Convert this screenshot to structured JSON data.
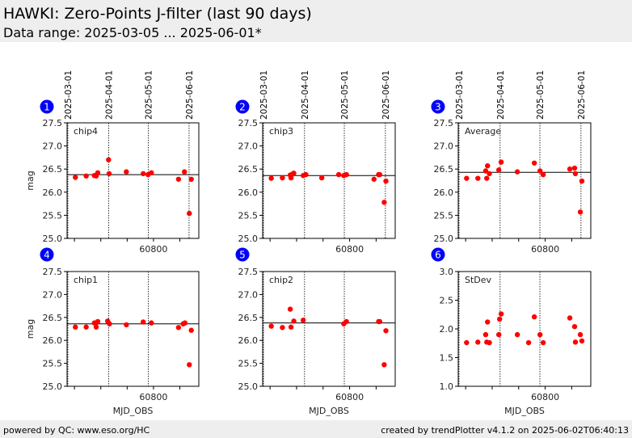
{
  "header": {
    "title": "HAWKI: Zero-Points J-filter (last 90 days)",
    "subtitle": "Data range: 2025-03-05 ... 2025-06-01*"
  },
  "footer": {
    "left": "powered by QC: www.eso.org/HC",
    "right": "created by trendPlotter v4.1.2 on 2025-06-02T06:40:13"
  },
  "colors": {
    "points": "#ff0000",
    "badge": "#0000ff",
    "badge_text": "#ffffcc",
    "mean_line": "#000000"
  },
  "chart_data": [
    {
      "type": "scatter",
      "panel": "1",
      "label": "chip4",
      "ylabel": "mag",
      "xlabel": "",
      "ylim": [
        25.0,
        27.5
      ],
      "yticks": [
        25.0,
        25.5,
        26.0,
        26.5,
        27.0,
        27.5
      ],
      "xlim": [
        60734.4,
        60834.4
      ],
      "xticks": [
        60800
      ],
      "date_lines": {
        "mjd": [
          60735,
          60766,
          60796,
          60827
        ],
        "labels": [
          "2025-03-01",
          "2025-04-01",
          "2025-05-01",
          "2025-06-01"
        ]
      },
      "mean": 26.38,
      "x": [
        60740.7,
        60748.9,
        60755.1,
        60756.5,
        60757.7,
        60765.9,
        60766.3,
        60779.4,
        60792.2,
        60795.9,
        60798.4,
        60819.0,
        60823.5,
        60827.2,
        60828.7
      ],
      "y": [
        26.32,
        26.35,
        26.36,
        26.35,
        26.42,
        26.7,
        26.4,
        26.44,
        26.4,
        26.38,
        26.42,
        26.28,
        26.44,
        25.54,
        26.28
      ]
    },
    {
      "type": "scatter",
      "panel": "2",
      "label": "chip3",
      "ylabel": "",
      "xlabel": "",
      "ylim": [
        25.0,
        27.5
      ],
      "yticks": [
        25.0,
        25.5,
        26.0,
        26.5,
        27.0,
        27.5
      ],
      "xlim": [
        60734.4,
        60834.4
      ],
      "xticks": [
        60800
      ],
      "date_lines": {
        "mjd": [
          60735,
          60766,
          60796,
          60827
        ],
        "labels": [
          "2025-03-01",
          "2025-04-01",
          "2025-05-01",
          "2025-06-01"
        ]
      },
      "mean": 26.36,
      "x": [
        60740.9,
        60749.3,
        60755.2,
        60755.8,
        60756.9,
        60757.9,
        60765.0,
        60767.0,
        60779.0,
        60791.8,
        60795.6,
        60797.6,
        60818.4,
        60821.9,
        60822.7,
        60826.1,
        60827.4
      ],
      "y": [
        26.3,
        26.31,
        26.37,
        26.31,
        26.39,
        26.41,
        26.36,
        26.38,
        26.31,
        26.38,
        26.36,
        26.38,
        26.28,
        26.38,
        26.38,
        25.78,
        26.24
      ]
    },
    {
      "type": "scatter",
      "panel": "3",
      "label": "Average",
      "ylabel": "",
      "xlabel": "",
      "ylim": [
        25.0,
        27.5
      ],
      "yticks": [
        25.0,
        25.5,
        26.0,
        26.5,
        27.0,
        27.5
      ],
      "xlim": [
        60734.4,
        60834.4
      ],
      "xticks": [
        60800
      ],
      "date_lines": {
        "mjd": [
          60735,
          60766,
          60796,
          60827
        ],
        "labels": [
          "2025-03-01",
          "2025-04-01",
          "2025-05-01",
          "2025-06-01"
        ]
      },
      "mean": 26.43,
      "x": [
        60740.7,
        60749.2,
        60755.1,
        60755.9,
        60756.5,
        60757.9,
        60765.0,
        60766.8,
        60779.0,
        60791.8,
        60796.1,
        60798.5,
        60818.6,
        60822.2,
        60822.8,
        60826.5,
        60827.7
      ],
      "y": [
        26.3,
        26.3,
        26.46,
        26.3,
        26.57,
        26.4,
        26.48,
        26.65,
        26.44,
        26.63,
        26.46,
        26.38,
        26.5,
        26.52,
        26.4,
        25.57,
        26.24
      ]
    },
    {
      "type": "scatter",
      "panel": "4",
      "label": "chip1",
      "ylabel": "mag",
      "xlabel": "MJD_OBS",
      "ylim": [
        25.0,
        27.5
      ],
      "yticks": [
        25.0,
        25.5,
        26.0,
        26.5,
        27.0,
        27.5
      ],
      "xlim": [
        60734.4,
        60834.4
      ],
      "xticks": [
        60800
      ],
      "date_lines": {
        "mjd": [
          60735,
          60766,
          60796
        ],
        "labels": []
      },
      "mean": 26.36,
      "x": [
        60740.7,
        60748.9,
        60755.1,
        60756.5,
        60756.5,
        60757.7,
        60765.2,
        60766.6,
        60779.4,
        60792.2,
        60798.4,
        60819.0,
        60822.5,
        60823.9,
        60827.2,
        60828.7
      ],
      "y": [
        26.29,
        26.29,
        26.38,
        26.29,
        26.38,
        26.41,
        26.42,
        26.36,
        26.34,
        26.4,
        26.38,
        26.28,
        26.36,
        26.38,
        25.47,
        26.22
      ]
    },
    {
      "type": "scatter",
      "panel": "5",
      "label": "chip2",
      "ylabel": "",
      "xlabel": "MJD_OBS",
      "ylim": [
        25.0,
        27.5
      ],
      "yticks": [
        25.0,
        25.5,
        26.0,
        26.5,
        27.0,
        27.5
      ],
      "xlim": [
        60734.4,
        60834.4
      ],
      "xticks": [
        60800
      ],
      "date_lines": {
        "mjd": [
          60735,
          60766,
          60796
        ],
        "labels": []
      },
      "mean": 26.38,
      "x": [
        60740.9,
        60749.3,
        60755.2,
        60755.8,
        60757.9,
        60765.0,
        60795.6,
        60797.6,
        60821.9,
        60822.7,
        60826.1,
        60827.4
      ],
      "y": [
        26.31,
        26.28,
        26.68,
        26.29,
        26.42,
        26.44,
        26.36,
        26.41,
        26.41,
        26.41,
        25.47,
        26.21
      ]
    },
    {
      "type": "scatter",
      "panel": "6",
      "label": "StDev",
      "ylabel": "",
      "xlabel": "MJD_OBS",
      "ylim": [
        1.0,
        3.0
      ],
      "yticks": [
        1.0,
        1.5,
        2.0,
        2.5,
        3.0
      ],
      "xlim": [
        60734.4,
        60834.4
      ],
      "xticks": [
        60800
      ],
      "date_lines": {
        "mjd": [
          60735,
          60766,
          60796
        ],
        "labels": []
      },
      "mean": null,
      "x": [
        60740.7,
        60749.2,
        60755.1,
        60755.9,
        60756.5,
        60757.9,
        60765.0,
        60765.6,
        60766.8,
        60779.0,
        60787.5,
        60791.8,
        60796.1,
        60798.5,
        60818.6,
        60822.2,
        60822.8,
        60826.5,
        60827.7
      ],
      "y": [
        1.76,
        1.77,
        1.9,
        1.77,
        2.12,
        1.76,
        1.9,
        2.17,
        2.26,
        1.9,
        1.76,
        2.21,
        1.9,
        1.76,
        2.19,
        2.04,
        1.77,
        1.9,
        1.79
      ]
    }
  ]
}
